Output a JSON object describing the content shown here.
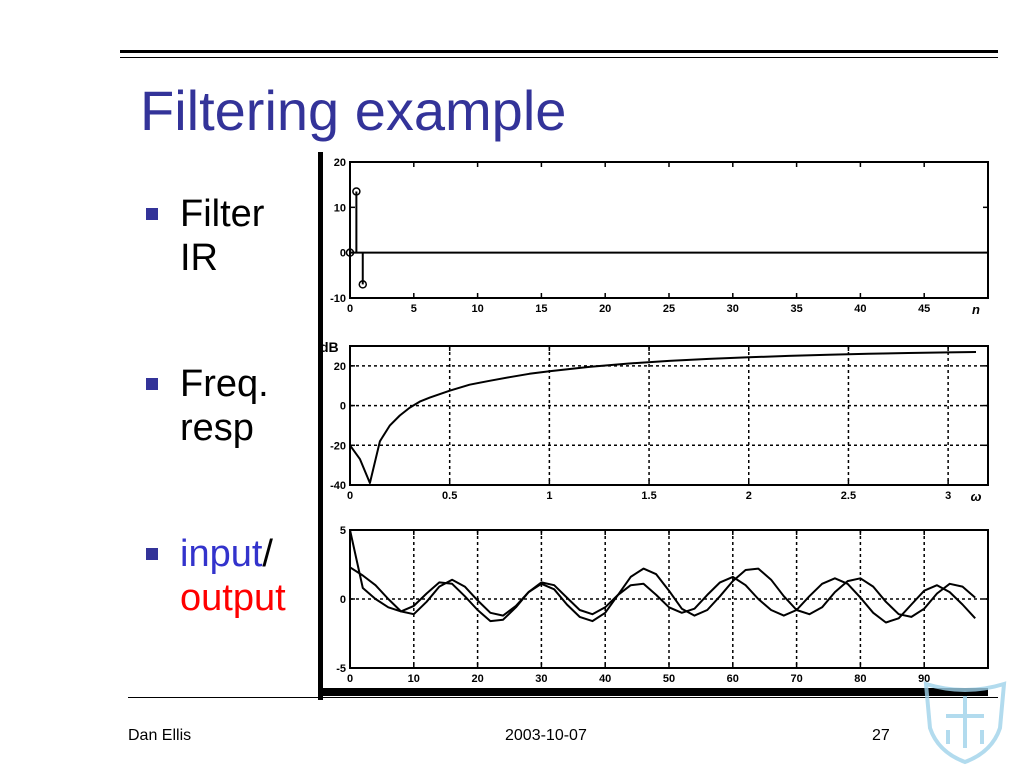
{
  "slide": {
    "title": "Filtering example",
    "bullets": [
      {
        "line1": "Filter",
        "line2": "IR"
      },
      {
        "line1": "Freq.",
        "line2": "resp"
      },
      {
        "line1_a": "input",
        "line1_b": "/",
        "line2": "output"
      }
    ],
    "colors": {
      "title": "#333399",
      "bullet": "#333399",
      "input": "#3333cc",
      "output": "#ff0000"
    }
  },
  "footer": {
    "author": "Dan Ellis",
    "date": "2003-10-07",
    "page": "27"
  },
  "logo": {
    "icon": "university-crest-watermark-icon"
  },
  "chart_data": [
    {
      "type": "stem",
      "xlabel": "n",
      "xlim": [
        0,
        50
      ],
      "ylim": [
        -10,
        20
      ],
      "xticks": [
        0,
        5,
        10,
        15,
        20,
        25,
        30,
        35,
        40,
        45
      ],
      "yticks": [
        -10,
        0,
        10,
        20
      ],
      "stems": [
        {
          "x": 0,
          "y": 0
        },
        {
          "x": 0.5,
          "y": 13.5
        },
        {
          "x": 1,
          "y": -7
        }
      ],
      "baseline": 0,
      "grid": false
    },
    {
      "type": "line",
      "ylabel": "dB",
      "xlabel": "ω",
      "xlim": [
        0,
        3.2
      ],
      "ylim": [
        -40,
        30
      ],
      "xticks": [
        0,
        0.5,
        1,
        1.5,
        2,
        2.5,
        3
      ],
      "yticks": [
        -40,
        -20,
        0,
        20
      ],
      "grid": true,
      "x": [
        0,
        0.05,
        0.1,
        0.15,
        0.2,
        0.25,
        0.3,
        0.35,
        0.4,
        0.5,
        0.6,
        0.7,
        0.8,
        0.9,
        1.0,
        1.2,
        1.4,
        1.6,
        1.8,
        2.0,
        2.2,
        2.4,
        2.6,
        2.8,
        3.0,
        3.14
      ],
      "y": [
        -20,
        -27,
        -39,
        -18,
        -10,
        -5,
        -1,
        2,
        4,
        7.5,
        10.5,
        12.5,
        14.3,
        16,
        17.3,
        19.5,
        21.2,
        22.5,
        23.5,
        24.3,
        25,
        25.6,
        26.1,
        26.5,
        26.8,
        27
      ]
    },
    {
      "type": "line",
      "xlim": [
        0,
        100
      ],
      "ylim": [
        -5,
        5
      ],
      "xticks": [
        0,
        10,
        20,
        30,
        40,
        50,
        60,
        70,
        80,
        90
      ],
      "yticks": [
        -5,
        0,
        5
      ],
      "grid": true,
      "series": [
        {
          "x": [
            0,
            2,
            4,
            6,
            8,
            10,
            12,
            14,
            16,
            18,
            20,
            22,
            24,
            26,
            28,
            30,
            32,
            34,
            36,
            38,
            40,
            42,
            44,
            46,
            48,
            50,
            52,
            54,
            56,
            58,
            60,
            62,
            64,
            66,
            68,
            70,
            72,
            74,
            76,
            78,
            80,
            82,
            84,
            86,
            88,
            90,
            92,
            94,
            96,
            98
          ],
          "y": [
            2.3,
            1.7,
            1.0,
            0.0,
            -0.9,
            -1.1,
            -0.2,
            0.9,
            1.4,
            0.9,
            -0.1,
            -1.0,
            -1.2,
            -0.5,
            0.5,
            1.1,
            0.7,
            -0.4,
            -1.3,
            -1.6,
            -1.0,
            0.3,
            1.6,
            2.2,
            1.8,
            0.6,
            -0.7,
            -1.2,
            -0.8,
            0.2,
            1.3,
            2.1,
            2.2,
            1.4,
            0.2,
            -0.8,
            -1.1,
            -0.6,
            0.5,
            1.3,
            1.5,
            0.9,
            -0.2,
            -1.1,
            -1.3,
            -0.7,
            0.4,
            1.1,
            0.9,
            0.1
          ]
        },
        {
          "x": [
            0,
            2,
            4,
            6,
            8,
            10,
            12,
            14,
            16,
            18,
            20,
            22,
            24,
            26,
            28,
            30,
            32,
            34,
            36,
            38,
            40,
            42,
            44,
            46,
            48,
            50,
            52,
            54,
            56,
            58,
            60,
            62,
            64,
            66,
            68,
            70,
            72,
            74,
            76,
            78,
            80,
            82,
            84,
            86,
            88,
            90,
            92,
            94,
            96,
            98
          ],
          "y": [
            5.0,
            0.8,
            0.0,
            -0.6,
            -0.9,
            -0.5,
            0.4,
            1.2,
            1.1,
            0.2,
            -0.8,
            -1.6,
            -1.5,
            -0.6,
            0.5,
            1.2,
            1.0,
            0.1,
            -0.8,
            -1.1,
            -0.6,
            0.3,
            1.0,
            1.1,
            0.3,
            -0.6,
            -1.0,
            -0.7,
            0.3,
            1.2,
            1.6,
            1.0,
            0.0,
            -0.8,
            -1.2,
            -0.8,
            0.2,
            1.1,
            1.5,
            1.1,
            0.1,
            -1.0,
            -1.7,
            -1.4,
            -0.4,
            0.6,
            1.0,
            0.5,
            -0.4,
            -1.4
          ]
        }
      ]
    }
  ]
}
